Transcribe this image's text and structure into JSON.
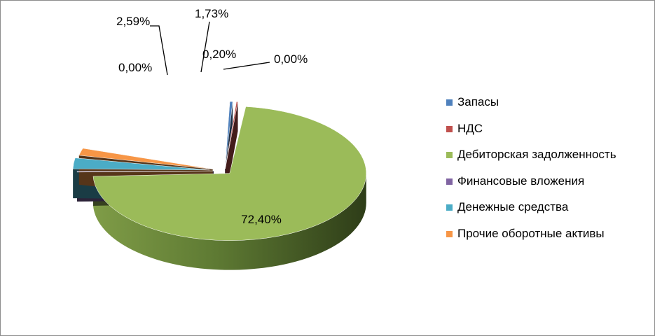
{
  "chart_data": {
    "type": "pie",
    "style": "3d-exploded",
    "title": "",
    "legend_position": "right",
    "slices": [
      {
        "label": "Запасы",
        "value": 0.2,
        "value_label": "0,20%",
        "color": "#4F81BD"
      },
      {
        "label": "НДС",
        "value": 0.0,
        "value_label": "0,00%",
        "color": "#C0504D"
      },
      {
        "label": "Дебиторская задолженность",
        "value": 72.4,
        "value_label": "72,40%",
        "color": "#9BBB59"
      },
      {
        "label": "Финансовые вложения",
        "value": 0.0,
        "value_label": "0,00%",
        "color": "#8064A2"
      },
      {
        "label": "Денежные средства",
        "value": 2.59,
        "value_label": "2,59%",
        "color": "#4BACC6"
      },
      {
        "label": "Прочие оборотные активы",
        "value": 1.73,
        "value_label": "1,73%",
        "color": "#F79646"
      }
    ]
  }
}
